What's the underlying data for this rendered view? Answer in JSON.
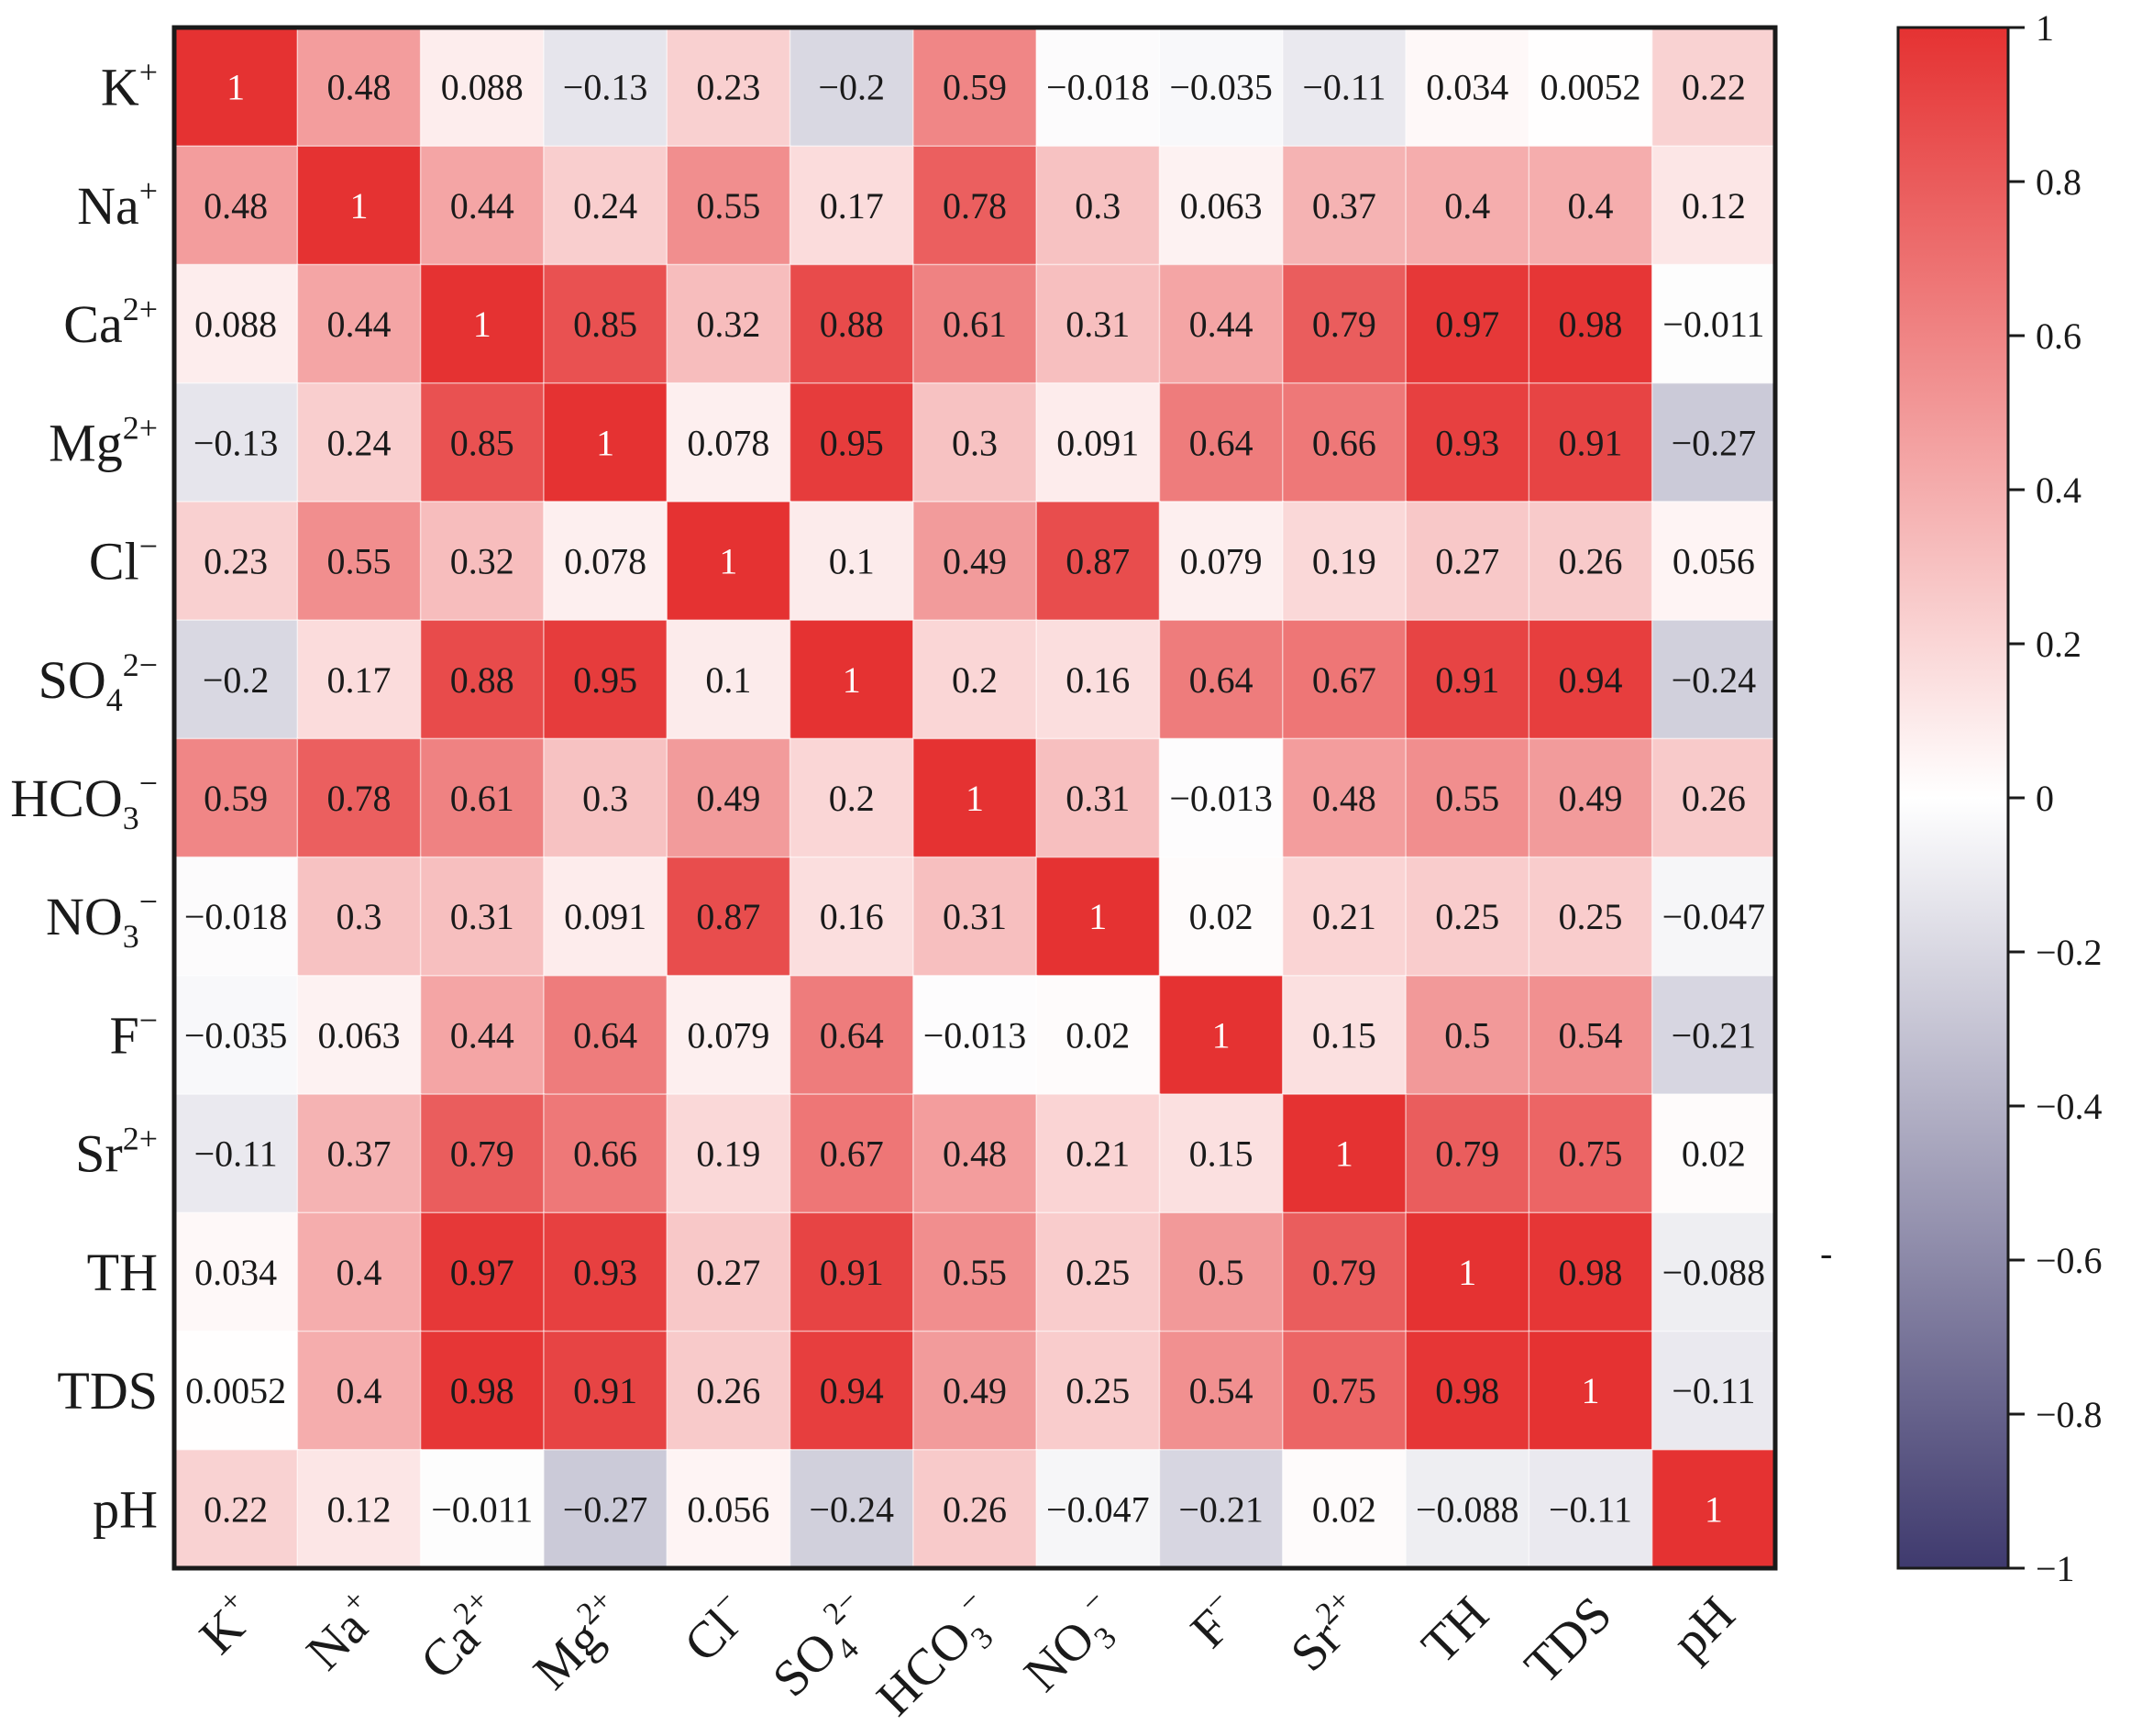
{
  "chart_data": {
    "type": "heatmap",
    "title": "",
    "variables": [
      "K+",
      "Na+",
      "Ca2+",
      "Mg2+",
      "Cl−",
      "SO42−",
      "HCO3−",
      "NO3−",
      "F−",
      "Sr2+",
      "TH",
      "TDS",
      "pH"
    ],
    "labels": [
      {
        "base": "K",
        "sub": "",
        "sup": "+"
      },
      {
        "base": "Na",
        "sub": "",
        "sup": "+"
      },
      {
        "base": "Ca",
        "sub": "",
        "sup": "2+"
      },
      {
        "base": "Mg",
        "sub": "",
        "sup": "2+"
      },
      {
        "base": "Cl",
        "sub": "",
        "sup": "−"
      },
      {
        "base": "SO",
        "sub": "4",
        "sup": "2−"
      },
      {
        "base": "HCO",
        "sub": "3",
        "sup": "−"
      },
      {
        "base": "NO",
        "sub": "3",
        "sup": "−"
      },
      {
        "base": "F",
        "sub": "",
        "sup": "−"
      },
      {
        "base": "Sr",
        "sub": "",
        "sup": "2+"
      },
      {
        "base": "TH",
        "sub": "",
        "sup": ""
      },
      {
        "base": "TDS",
        "sub": "",
        "sup": ""
      },
      {
        "base": "pH",
        "sub": "",
        "sup": ""
      }
    ],
    "values": [
      [
        "1",
        "0.48",
        "0.088",
        "−0.13",
        "0.23",
        "−0.2",
        "0.59",
        "−0.018",
        "−0.035",
        "−0.11",
        "0.034",
        "0.0052",
        "0.22"
      ],
      [
        "0.48",
        "1",
        "0.44",
        "0.24",
        "0.55",
        "0.17",
        "0.78",
        "0.3",
        "0.063",
        "0.37",
        "0.4",
        "0.4",
        "0.12"
      ],
      [
        "0.088",
        "0.44",
        "1",
        "0.85",
        "0.32",
        "0.88",
        "0.61",
        "0.31",
        "0.44",
        "0.79",
        "0.97",
        "0.98",
        "−0.011"
      ],
      [
        "−0.13",
        "0.24",
        "0.85",
        "1",
        "0.078",
        "0.95",
        "0.3",
        "0.091",
        "0.64",
        "0.66",
        "0.93",
        "0.91",
        "−0.27"
      ],
      [
        "0.23",
        "0.55",
        "0.32",
        "0.078",
        "1",
        "0.1",
        "0.49",
        "0.87",
        "0.079",
        "0.19",
        "0.27",
        "0.26",
        "0.056"
      ],
      [
        "−0.2",
        "0.17",
        "0.88",
        "0.95",
        "0.1",
        "1",
        "0.2",
        "0.16",
        "0.64",
        "0.67",
        "0.91",
        "0.94",
        "−0.24"
      ],
      [
        "0.59",
        "0.78",
        "0.61",
        "0.3",
        "0.49",
        "0.2",
        "1",
        "0.31",
        "−0.013",
        "0.48",
        "0.55",
        "0.49",
        "0.26"
      ],
      [
        "−0.018",
        "0.3",
        "0.31",
        "0.091",
        "0.87",
        "0.16",
        "0.31",
        "1",
        "0.02",
        "0.21",
        "0.25",
        "0.25",
        "−0.047"
      ],
      [
        "−0.035",
        "0.063",
        "0.44",
        "0.64",
        "0.079",
        "0.64",
        "−0.013",
        "0.02",
        "1",
        "0.15",
        "0.5",
        "0.54",
        "−0.21"
      ],
      [
        "−0.11",
        "0.37",
        "0.79",
        "0.66",
        "0.19",
        "0.67",
        "0.48",
        "0.21",
        "0.15",
        "1",
        "0.79",
        "0.75",
        "0.02"
      ],
      [
        "0.034",
        "0.4",
        "0.97",
        "0.93",
        "0.27",
        "0.91",
        "0.55",
        "0.25",
        "0.5",
        "0.79",
        "1",
        "0.98",
        "−0.088"
      ],
      [
        "0.0052",
        "0.4",
        "0.98",
        "0.91",
        "0.26",
        "0.94",
        "0.49",
        "0.25",
        "0.54",
        "0.75",
        "0.98",
        "1",
        "−0.11"
      ],
      [
        "0.22",
        "0.12",
        "−0.011",
        "−0.27",
        "0.056",
        "−0.24",
        "0.26",
        "−0.047",
        "−0.21",
        "0.02",
        "−0.088",
        "−0.11",
        "1"
      ]
    ],
    "colorbar": {
      "range": [
        -1,
        1
      ],
      "ticks": [
        "1",
        "0.8",
        "0.6",
        "0.4",
        "0.2",
        "0",
        "−0.2",
        "−0.4",
        "−0.6",
        "−0.8",
        "−1"
      ],
      "stray_mark": "-"
    },
    "colors": {
      "high": "#e53232",
      "mid": "#ffffff",
      "low": "#3f3a6e",
      "text_dark": "#1a1a1a",
      "text_light": "#ffffff",
      "frame": "#1a1a1a"
    }
  }
}
